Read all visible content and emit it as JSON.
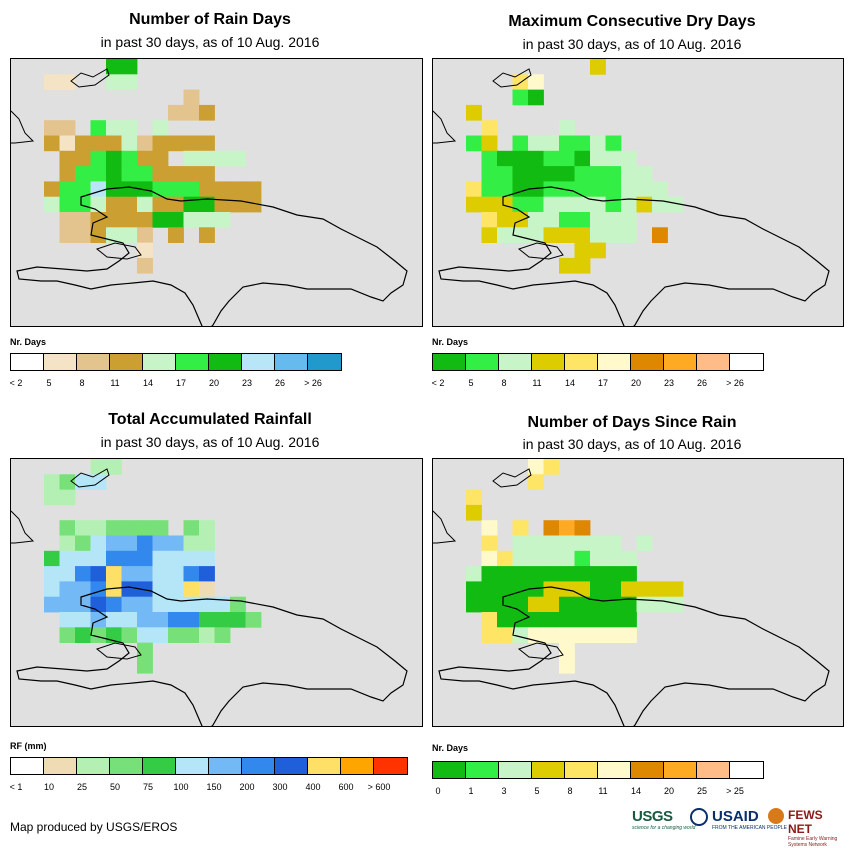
{
  "panels": [
    {
      "id": "rain-days",
      "title": "Number of Rain Days",
      "subtitle": "in past 30 days, as of 10 Aug. 2016",
      "legend_title": "Nr. Days",
      "legend_colors": [
        "#ffffff",
        "#f5e3c5",
        "#e3c48e",
        "#cc9f33",
        "#c8f5c8",
        "#33ee44",
        "#11bb11",
        "#b8e6f8",
        "#66bbee",
        "#2299cc"
      ],
      "legend_labels": [
        "< 2",
        "5",
        "8",
        "11",
        "14",
        "17",
        "20",
        "23",
        "26",
        "> 26"
      ],
      "grid": [
        "......66........",
        "..11..44........",
        "...........2....",
        "..........223...",
        "..22.544.4......",
        "..31333423333...",
        "...3356533.4444.",
        "...3556553333...",
        "..35576665553333",
        "..45543343366333",
        "...22333366444..",
        "...223442.3.3...",
        "........1.......",
        "........2.......",
        "................"
      ]
    },
    {
      "id": "dry-days",
      "title": "Maximum Consecutive Dry Days",
      "subtitle": "in past 30 days, as of 10 Aug. 2016",
      "legend_title": "Nr. Days",
      "legend_colors": [
        "#11bb11",
        "#33ee44",
        "#c8f5c8",
        "#ddcc00",
        "#ffe566",
        "#fff9cc",
        "#dd8800",
        "#ffaa22",
        "#ffbb88",
        "#ffffff"
      ],
      "legend_labels": [
        "< 2",
        "5",
        "8",
        "11",
        "14",
        "17",
        "20",
        "23",
        "26",
        "> 26"
      ],
      "grid": [
        "..........3.....",
        ".....45.........",
        ".....10.........",
        "..3.............",
        "...4....2.......",
        "..13.1221121....",
        "...1000110222...",
        "...11000011122..",
        "..4110011111222.",
        "..33311222212322",
        "...4332211222...",
        "...3222333222.6.",
        ".........33.....",
        "........33......",
        "................"
      ]
    },
    {
      "id": "rainfall",
      "title": "Total Accumulated Rainfall",
      "subtitle": "in past 30 days, as of 10 Aug. 2016",
      "legend_title": "RF (mm)",
      "legend_colors": [
        "#ffffff",
        "#f0dcb4",
        "#b4f0b4",
        "#78e078",
        "#33cc44",
        "#b4e6f8",
        "#73b9f5",
        "#3388ee",
        "#1f5fd9",
        "#ffe066",
        "#ffa500",
        "#ff3300"
      ],
      "legend_labels": [
        "< 1",
        "10",
        "25",
        "50",
        "75",
        "100",
        "150",
        "200",
        "300",
        "400",
        "600",
        "> 600"
      ],
      "grid": [
        ".....22.........",
        "..2355..........",
        "..22............",
        "................",
        "...3223333.32...",
        "...2356676622...",
        "..45557775555...",
        "..55789665578...",
        "..56679885591...",
        "..6668766555553.",
        "...5565566774443",
        "...34343553323..",
        "........3.......",
        "........3.......",
        "................"
      ]
    },
    {
      "id": "days-since-rain",
      "title": "Number of Days Since Rain",
      "subtitle": "in past 30 days, as of 10 Aug. 2016",
      "legend_title": "Nr. Days",
      "legend_colors": [
        "#11bb11",
        "#33ee44",
        "#c8f5c8",
        "#ddcc00",
        "#ffe566",
        "#fff9cc",
        "#dd8800",
        "#ffaa22",
        "#ffbb88",
        "#ffffff"
      ],
      "legend_labels": [
        "0",
        "1",
        "3",
        "5",
        "8",
        "11",
        "14",
        "20",
        "25",
        "> 25"
      ],
      "grid": [
        "......54........",
        "......4.........",
        "..4.............",
        "..3.............",
        "...5.4.676......",
        "...4.2222222.2..",
        "...5422221222...",
        "..20000000000...",
        "..00000333003333",
        "..00003300000222",
        "...4000000000...",
        "...4425555555...",
        "........5.......",
        "........5.......",
        "................"
      ]
    }
  ],
  "footer": "Map produced by USGS/EROS",
  "logos": {
    "usgs": "USGS",
    "usgs_tagline": "science for a changing world",
    "usaid": "USAID",
    "usaid_tagline": "FROM THE AMERICAN PEOPLE",
    "fews": "FEWS NET",
    "fews_tagline": "Famine Early Warning Systems Network"
  }
}
